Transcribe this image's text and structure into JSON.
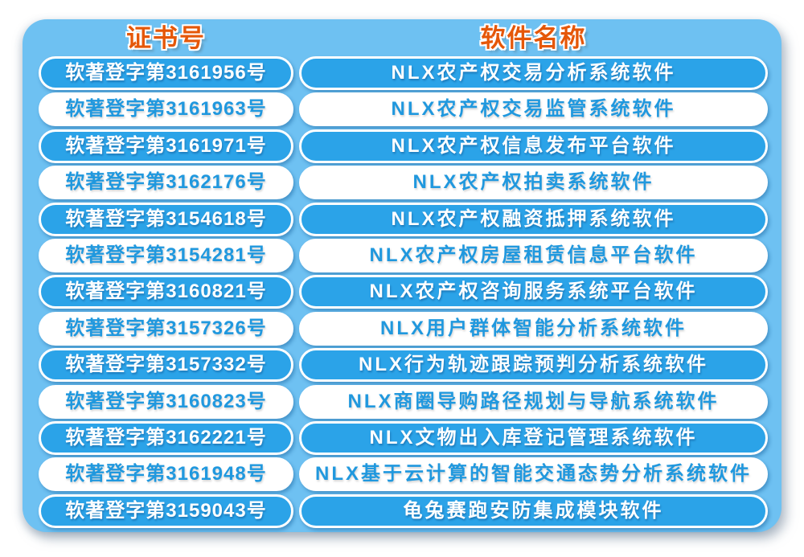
{
  "colors": {
    "page_bg": "#FFFFFF",
    "panel_bg": "#6EC1F2",
    "pill_blue": "#2BA3E8",
    "text_blue": "#2098DE",
    "header_orange": "#E55708",
    "pill_border": "#FFFFFF"
  },
  "table": {
    "headers": [
      "证书号",
      "软件名称"
    ],
    "rows": [
      {
        "cert": "软著登字第3161956号",
        "name": "NLX农产权交易分析系统软件"
      },
      {
        "cert": "软著登字第3161963号",
        "name": "NLX农产权交易监管系统软件"
      },
      {
        "cert": "软著登字第3161971号",
        "name": "NLX农产权信息发布平台软件"
      },
      {
        "cert": "软著登字第3162176号",
        "name": "NLX农产权拍卖系统软件"
      },
      {
        "cert": "软著登字第3154618号",
        "name": "NLX农产权融资抵押系统软件"
      },
      {
        "cert": "软著登字第3154281号",
        "name": "NLX农产权房屋租赁信息平台软件"
      },
      {
        "cert": "软著登字第3160821号",
        "name": "NLX农产权咨询服务系统平台软件"
      },
      {
        "cert": "软著登字第3157326号",
        "name": "NLX用户群体智能分析系统软件"
      },
      {
        "cert": "软著登字第3157332号",
        "name": "NLX行为轨迹跟踪预判分析系统软件"
      },
      {
        "cert": "软著登字第3160823号",
        "name": "NLX商圈导购路径规划与导航系统软件"
      },
      {
        "cert": "软著登字第3162221号",
        "name": "NLX文物出入库登记管理系统软件"
      },
      {
        "cert": "软著登字第3161948号",
        "name": "NLX基于云计算的智能交通态势分析系统软件"
      },
      {
        "cert": "软著登字第3159043号",
        "name": "龟兔赛跑安防集成模块软件"
      }
    ]
  }
}
